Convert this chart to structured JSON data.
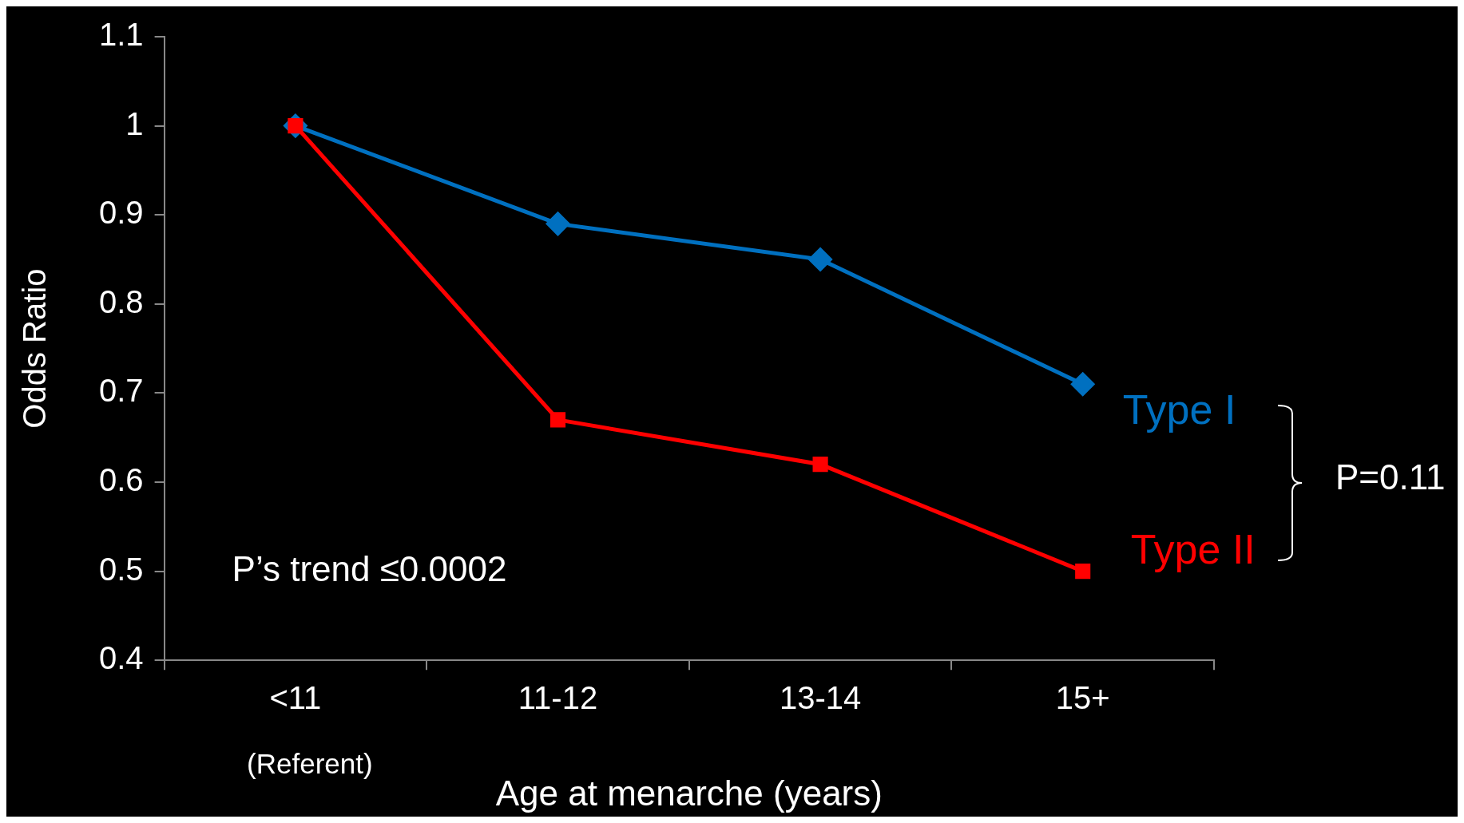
{
  "chart_data": {
    "type": "line",
    "xlabel": "Age at menarche (years)",
    "ylabel": "Odds Ratio",
    "categories": [
      "<11",
      "11-12",
      "13-14",
      "15+"
    ],
    "series": [
      {
        "name": "Type I",
        "color": "#0070c0",
        "values": [
          1,
          0.89,
          0.85,
          0.71
        ],
        "marker": "diamond"
      },
      {
        "name": "Type II",
        "color": "#ff0000",
        "values": [
          1,
          0.67,
          0.62,
          0.5
        ],
        "marker": "square"
      }
    ],
    "ylim": [
      0.4,
      1.1
    ],
    "yticks": [
      0.4,
      0.5,
      0.6,
      0.7,
      0.8,
      0.9,
      1,
      1.1
    ],
    "grid": false,
    "legend": false,
    "line_style": "solid",
    "annotations": [
      "(Referent)",
      "P’s trend ≤0.0002",
      "P=0.11"
    ]
  }
}
